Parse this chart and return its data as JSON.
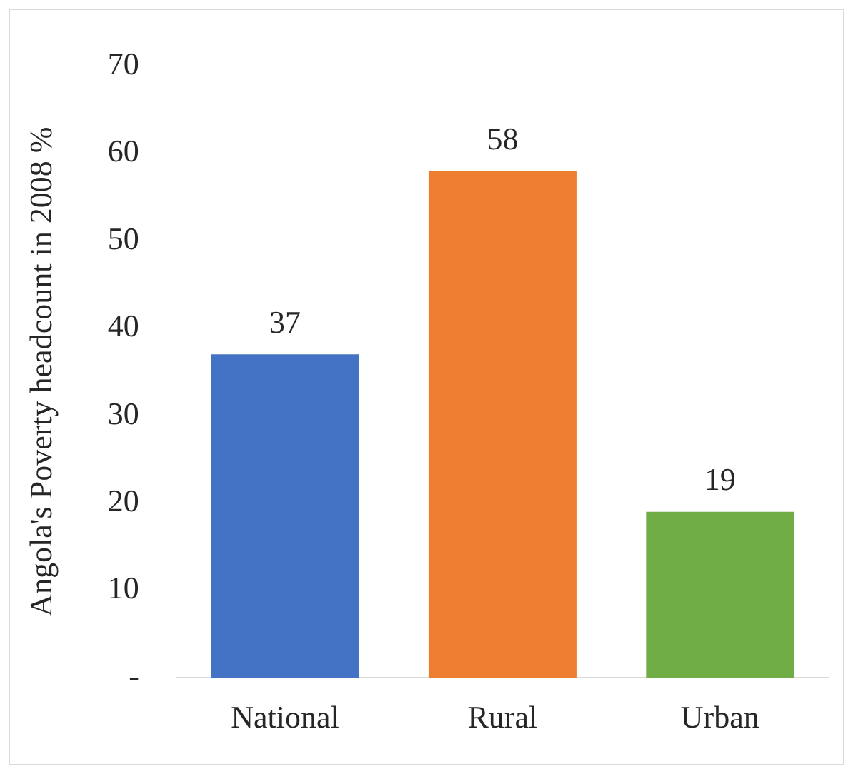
{
  "chart_data": {
    "type": "bar",
    "ylabel": "Angola's Poverty headcount in 2008 %",
    "categories": [
      "National",
      "Rural",
      "Urban"
    ],
    "values": [
      37,
      58,
      19
    ],
    "colors": [
      "#4472c4",
      "#ed7d31",
      "#70ad47"
    ],
    "ylim": [
      0,
      70
    ],
    "yticks": [
      {
        "value": 0,
        "label": "-"
      },
      10,
      20,
      30,
      40,
      50,
      60,
      70
    ],
    "grid": false,
    "legend": false,
    "data_labels": true
  }
}
